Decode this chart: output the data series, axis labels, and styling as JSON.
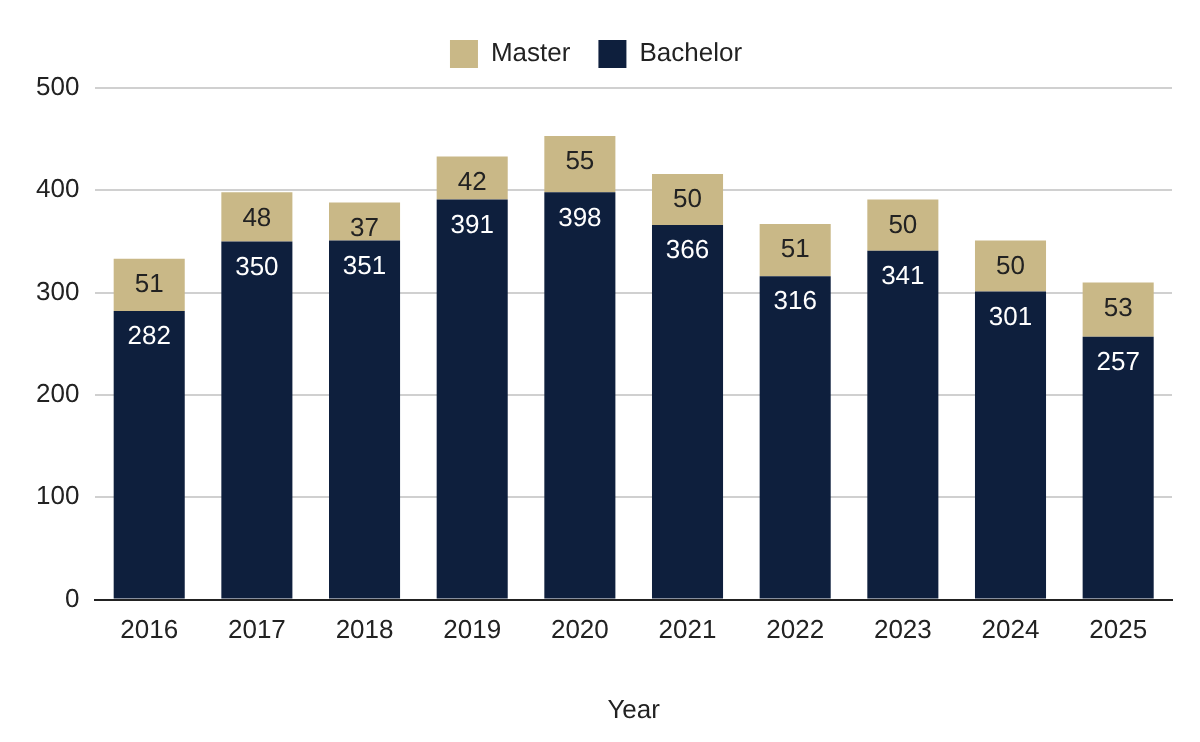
{
  "chart_data": {
    "type": "bar",
    "xlabel": "Year",
    "categories": [
      "2016",
      "2017",
      "2018",
      "2019",
      "2020",
      "2021",
      "2022",
      "2023",
      "2024",
      "2025"
    ],
    "series": [
      {
        "name": "Bachelor",
        "color": "#0e1f3d",
        "values": [
          282,
          350,
          351,
          391,
          398,
          366,
          316,
          341,
          301,
          257
        ]
      },
      {
        "name": "Master",
        "color": "#c9b887",
        "values": [
          51,
          48,
          37,
          42,
          55,
          50,
          51,
          50,
          50,
          53
        ]
      }
    ],
    "stacked": true,
    "ylim": [
      0,
      500
    ],
    "yticks": [
      0,
      100,
      200,
      300,
      400,
      500
    ],
    "grid": "y",
    "legend": "top",
    "data_labels": true
  }
}
